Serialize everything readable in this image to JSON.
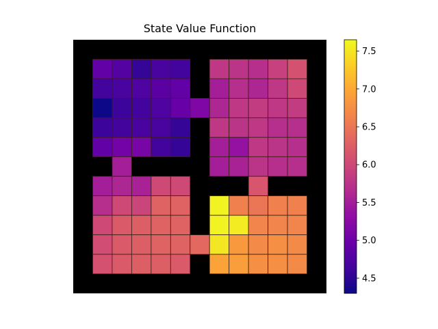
{
  "chart_data": {
    "type": "heatmap",
    "title": "State Value Function",
    "grid_size": 13,
    "wall_color": "#000000",
    "colormap": "plasma",
    "vmin": 4.3,
    "vmax": 7.65,
    "colorbar_ticks": [
      "4.5",
      "5.0",
      "5.5",
      "6.0",
      "6.5",
      "7.0",
      "7.5"
    ],
    "colorbar_tick_values": [
      4.5,
      5.0,
      5.5,
      6.0,
      6.5,
      7.0,
      7.5
    ],
    "values": [
      [
        null,
        null,
        null,
        null,
        null,
        null,
        null,
        null,
        null,
        null,
        null,
        null,
        null
      ],
      [
        null,
        4.9,
        4.8,
        4.55,
        4.7,
        4.65,
        null,
        5.8,
        5.75,
        5.7,
        5.9,
        6.1,
        null
      ],
      [
        null,
        4.65,
        4.7,
        4.75,
        4.85,
        4.9,
        null,
        5.5,
        5.7,
        5.6,
        5.8,
        6.0,
        null
      ],
      [
        null,
        4.3,
        4.6,
        4.65,
        4.75,
        4.95,
        5.15,
        5.6,
        5.8,
        5.85,
        5.8,
        5.85,
        null
      ],
      [
        null,
        4.6,
        4.65,
        4.7,
        4.7,
        4.55,
        null,
        5.8,
        5.75,
        5.8,
        5.7,
        5.7,
        null
      ],
      [
        null,
        4.9,
        5.05,
        5.1,
        4.65,
        4.55,
        null,
        5.5,
        5.35,
        5.8,
        5.75,
        5.7,
        null
      ],
      [
        null,
        null,
        5.5,
        null,
        null,
        null,
        null,
        5.5,
        5.55,
        5.75,
        5.7,
        5.7,
        null
      ],
      [
        null,
        5.5,
        5.6,
        5.55,
        6.0,
        6.0,
        null,
        null,
        null,
        6.15,
        null,
        null,
        null
      ],
      [
        null,
        5.7,
        6.0,
        5.95,
        6.3,
        6.3,
        null,
        7.6,
        6.6,
        6.5,
        6.6,
        6.6,
        null
      ],
      [
        null,
        6.0,
        6.2,
        6.25,
        6.3,
        6.3,
        null,
        7.6,
        7.55,
        6.65,
        6.65,
        6.65,
        null
      ],
      [
        null,
        6.05,
        6.2,
        6.25,
        6.3,
        6.3,
        6.35,
        7.5,
        6.85,
        6.7,
        6.75,
        6.7,
        null
      ],
      [
        null,
        6.1,
        6.2,
        6.25,
        6.25,
        6.2,
        null,
        6.95,
        6.9,
        6.75,
        6.75,
        6.7,
        null
      ],
      [
        null,
        null,
        null,
        null,
        null,
        null,
        null,
        null,
        null,
        null,
        null,
        null,
        null
      ]
    ]
  }
}
